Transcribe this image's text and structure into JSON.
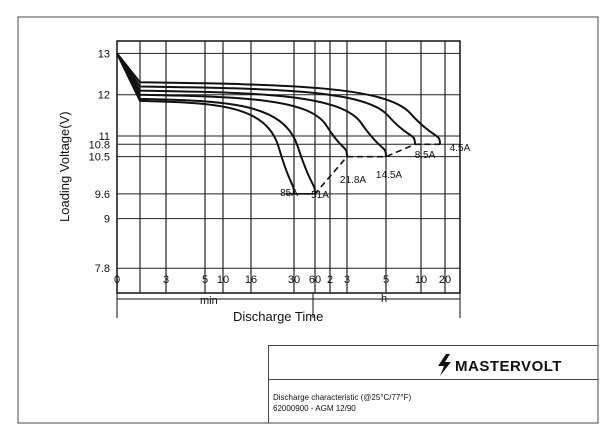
{
  "chart_data": {
    "type": "line",
    "title": "",
    "ylabel": "Loading  Voltage(V)",
    "xlabel": "Discharge Time",
    "y_ticks": [
      "13",
      "12",
      "11",
      "10.8",
      "10.5",
      "9.6",
      "9",
      "7.8"
    ],
    "ylim": [
      7.2,
      13.3
    ],
    "x_ticks": [
      "0",
      "3",
      "5",
      "10",
      "16",
      "30",
      "60",
      "2",
      "3",
      "5",
      "10",
      "20"
    ],
    "x_units": {
      "min": "min",
      "h": "h"
    },
    "grid": true,
    "series": [
      {
        "name": "85A",
        "cutoff_v": 9.6,
        "end_tick": "30 min"
      },
      {
        "name": "51A",
        "cutoff_v": 9.6,
        "end_tick": "60 min"
      },
      {
        "name": "21.8A",
        "cutoff_v": 10.5,
        "end_tick": "3 h"
      },
      {
        "name": "14.5A",
        "cutoff_v": 10.5,
        "end_tick": "5 h"
      },
      {
        "name": "8.5A",
        "cutoff_v": 10.8,
        "end_tick": "10 h"
      },
      {
        "name": "4.5A",
        "cutoff_v": 10.8,
        "end_tick": "20 h"
      }
    ]
  },
  "footer": {
    "caption": "Discharge characteristic (@25°C/77°F)",
    "model": "62000900 - AGM 12/90",
    "logo": "MASTERVOLT"
  }
}
